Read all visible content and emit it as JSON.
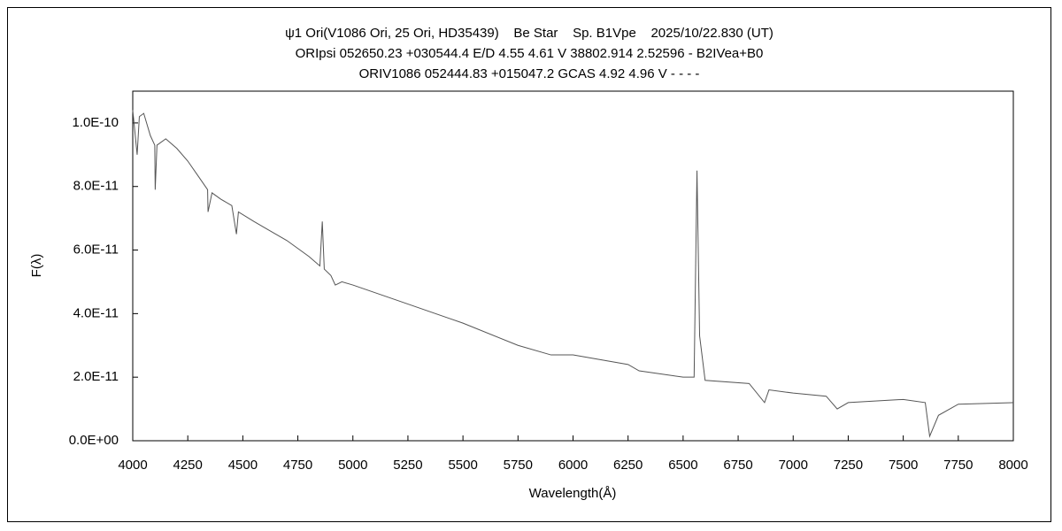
{
  "chart_data": {
    "type": "line",
    "title": [
      "ψ1 Ori(V1086 Ori, 25 Ori, HD35439)    Be Star    Sp. B1Vpe    2025/10/22.830 (UT)",
      "ORIpsi 052650.23 +030544.4 E/D 4.55 4.61 V 38802.914 2.52596 - B2IVea+B0",
      "ORIV1086 052444.83 +015047.2 GCAS 4.92 4.96 V - - - -"
    ],
    "x_label": "Wavelength(Å)",
    "y_label": "F(λ)",
    "color": "#555555",
    "x": [
      4000,
      4010,
      4020,
      4030,
      4050,
      4080,
      4100,
      4102,
      4110,
      4150,
      4200,
      4250,
      4300,
      4340,
      4342,
      4360,
      4400,
      4450,
      4471,
      4480,
      4550,
      4600,
      4700,
      4800,
      4850,
      4861,
      4870,
      4900,
      4920,
      4950,
      5000,
      5250,
      5500,
      5750,
      5900,
      6000,
      6250,
      6300,
      6500,
      6550,
      6563,
      6575,
      6600,
      6800,
      6870,
      6890,
      7000,
      7150,
      7200,
      7250,
      7500,
      7600,
      7620,
      7660,
      7750,
      8000
    ],
    "values": [
      1.04e-10,
      9.7e-11,
      9e-11,
      1.02e-10,
      1.03e-10,
      9.6e-11,
      9.3e-11,
      7.9e-11,
      9.3e-11,
      9.5e-11,
      9.2e-11,
      8.8e-11,
      8.3e-11,
      7.9e-11,
      7.2e-11,
      7.8e-11,
      7.6e-11,
      7.4e-11,
      6.5e-11,
      7.2e-11,
      6.9e-11,
      6.7e-11,
      6.3e-11,
      5.8e-11,
      5.5e-11,
      6.9e-11,
      5.4e-11,
      5.2e-11,
      4.9e-11,
      5e-11,
      4.9e-11,
      4.3e-11,
      3.7e-11,
      3e-11,
      2.7e-11,
      2.7e-11,
      2.4e-11,
      2.2e-11,
      2e-11,
      2e-11,
      8.5e-11,
      3.3e-11,
      1.9e-11,
      1.8e-11,
      1.2e-11,
      1.6e-11,
      1.5e-11,
      1.4e-11,
      1e-11,
      1.2e-11,
      1.3e-11,
      1.2e-11,
      1.4e-12,
      8e-12,
      1.15e-11,
      1.2e-11
    ],
    "xlim": [
      4000,
      8000
    ],
    "xticks": [
      4000,
      4250,
      4500,
      4750,
      5000,
      5250,
      5500,
      5750,
      6000,
      6250,
      6500,
      6750,
      7000,
      7250,
      7500,
      7750,
      8000
    ],
    "ylim": [
      0,
      1.1e-10
    ],
    "yticks": [
      {
        "value": 0,
        "label": "0.0E+00"
      },
      {
        "value": 2e-11,
        "label": "2.0E-11"
      },
      {
        "value": 4e-11,
        "label": "4.0E-11"
      },
      {
        "value": 6e-11,
        "label": "6.0E-11"
      },
      {
        "value": 8e-11,
        "label": "8.0E-11"
      },
      {
        "value": 1e-10,
        "label": "1.0E-10"
      }
    ],
    "grid": false
  }
}
